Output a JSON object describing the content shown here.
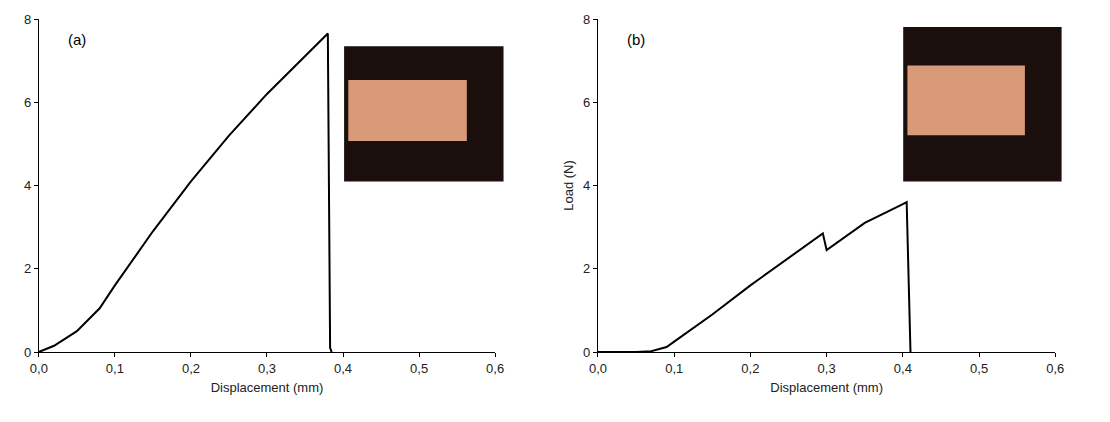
{
  "chart_data": [
    {
      "type": "line",
      "annotations": [
        "(a)"
      ],
      "x_label": "Displacement (mm)",
      "x": [
        0,
        0.02,
        0.05,
        0.08,
        0.1,
        0.15,
        0.2,
        0.25,
        0.3,
        0.35,
        0.38,
        0.383,
        0.385
      ],
      "values": [
        0,
        0.15,
        0.5,
        1.05,
        1.6,
        2.9,
        4.1,
        5.2,
        6.2,
        7.1,
        7.65,
        0.1,
        0
      ],
      "color": "#000000",
      "xlim": [
        0,
        0.6
      ],
      "xticks": [
        {
          "value": 0,
          "label": "0,0"
        },
        {
          "value": 0.1,
          "label": "0,1"
        },
        {
          "value": 0.2,
          "label": "0,2"
        },
        {
          "value": 0.3,
          "label": "0,3"
        },
        {
          "value": 0.4,
          "label": "0,4"
        },
        {
          "value": 0.5,
          "label": "0,5"
        },
        {
          "value": 0.6,
          "label": "0,6"
        }
      ],
      "ylim": [
        0,
        8
      ],
      "yticks": [
        0,
        2,
        4,
        6,
        8
      ],
      "grid": false
    },
    {
      "type": "line",
      "annotations": [
        "(b)"
      ],
      "x_label": "Displacement (mm)",
      "y_label": "Load (N)",
      "x": [
        0,
        0.05,
        0.07,
        0.09,
        0.1,
        0.15,
        0.2,
        0.25,
        0.295,
        0.3,
        0.35,
        0.4,
        0.405,
        0.41
      ],
      "values": [
        0,
        0,
        0.02,
        0.12,
        0.25,
        0.9,
        1.6,
        2.25,
        2.85,
        2.45,
        3.1,
        3.55,
        3.6,
        0
      ],
      "color": "#000000",
      "xlim": [
        0,
        0.6
      ],
      "xticks": [
        {
          "value": 0,
          "label": "0,0"
        },
        {
          "value": 0.1,
          "label": "0,1"
        },
        {
          "value": 0.2,
          "label": "0,2"
        },
        {
          "value": 0.3,
          "label": "0,3"
        },
        {
          "value": 0.4,
          "label": "0,4"
        },
        {
          "value": 0.5,
          "label": "0,5"
        },
        {
          "value": 0.6,
          "label": "0,6"
        }
      ],
      "ylim": [
        0,
        8
      ],
      "yticks": [
        0,
        2,
        4,
        6,
        8
      ],
      "grid": false
    }
  ]
}
